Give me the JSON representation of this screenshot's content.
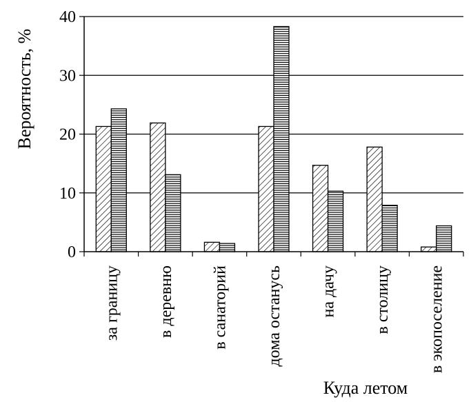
{
  "chart_data": {
    "type": "bar",
    "title": "",
    "xlabel": "Куда летом",
    "ylabel": "Вероятность, %",
    "ylim": [
      0,
      40
    ],
    "yticks": [
      0,
      10,
      20,
      30,
      40
    ],
    "ytick_labels": [
      "0",
      "10",
      "20",
      "30",
      "40"
    ],
    "grid": "horizontal",
    "legend": "none",
    "categories": [
      "за границу",
      "в деревню",
      "в санаторий",
      "дома останусь",
      "на дачу",
      "в столицу",
      "в экопоселение"
    ],
    "series": [
      {
        "pattern": "diagonal-hatch",
        "values": [
          21.3,
          21.9,
          1.6,
          21.3,
          14.7,
          17.8,
          0.8
        ]
      },
      {
        "pattern": "horizontal-hatch",
        "values": [
          24.3,
          13.1,
          1.4,
          38.3,
          10.3,
          7.9,
          4.4
        ]
      }
    ]
  }
}
